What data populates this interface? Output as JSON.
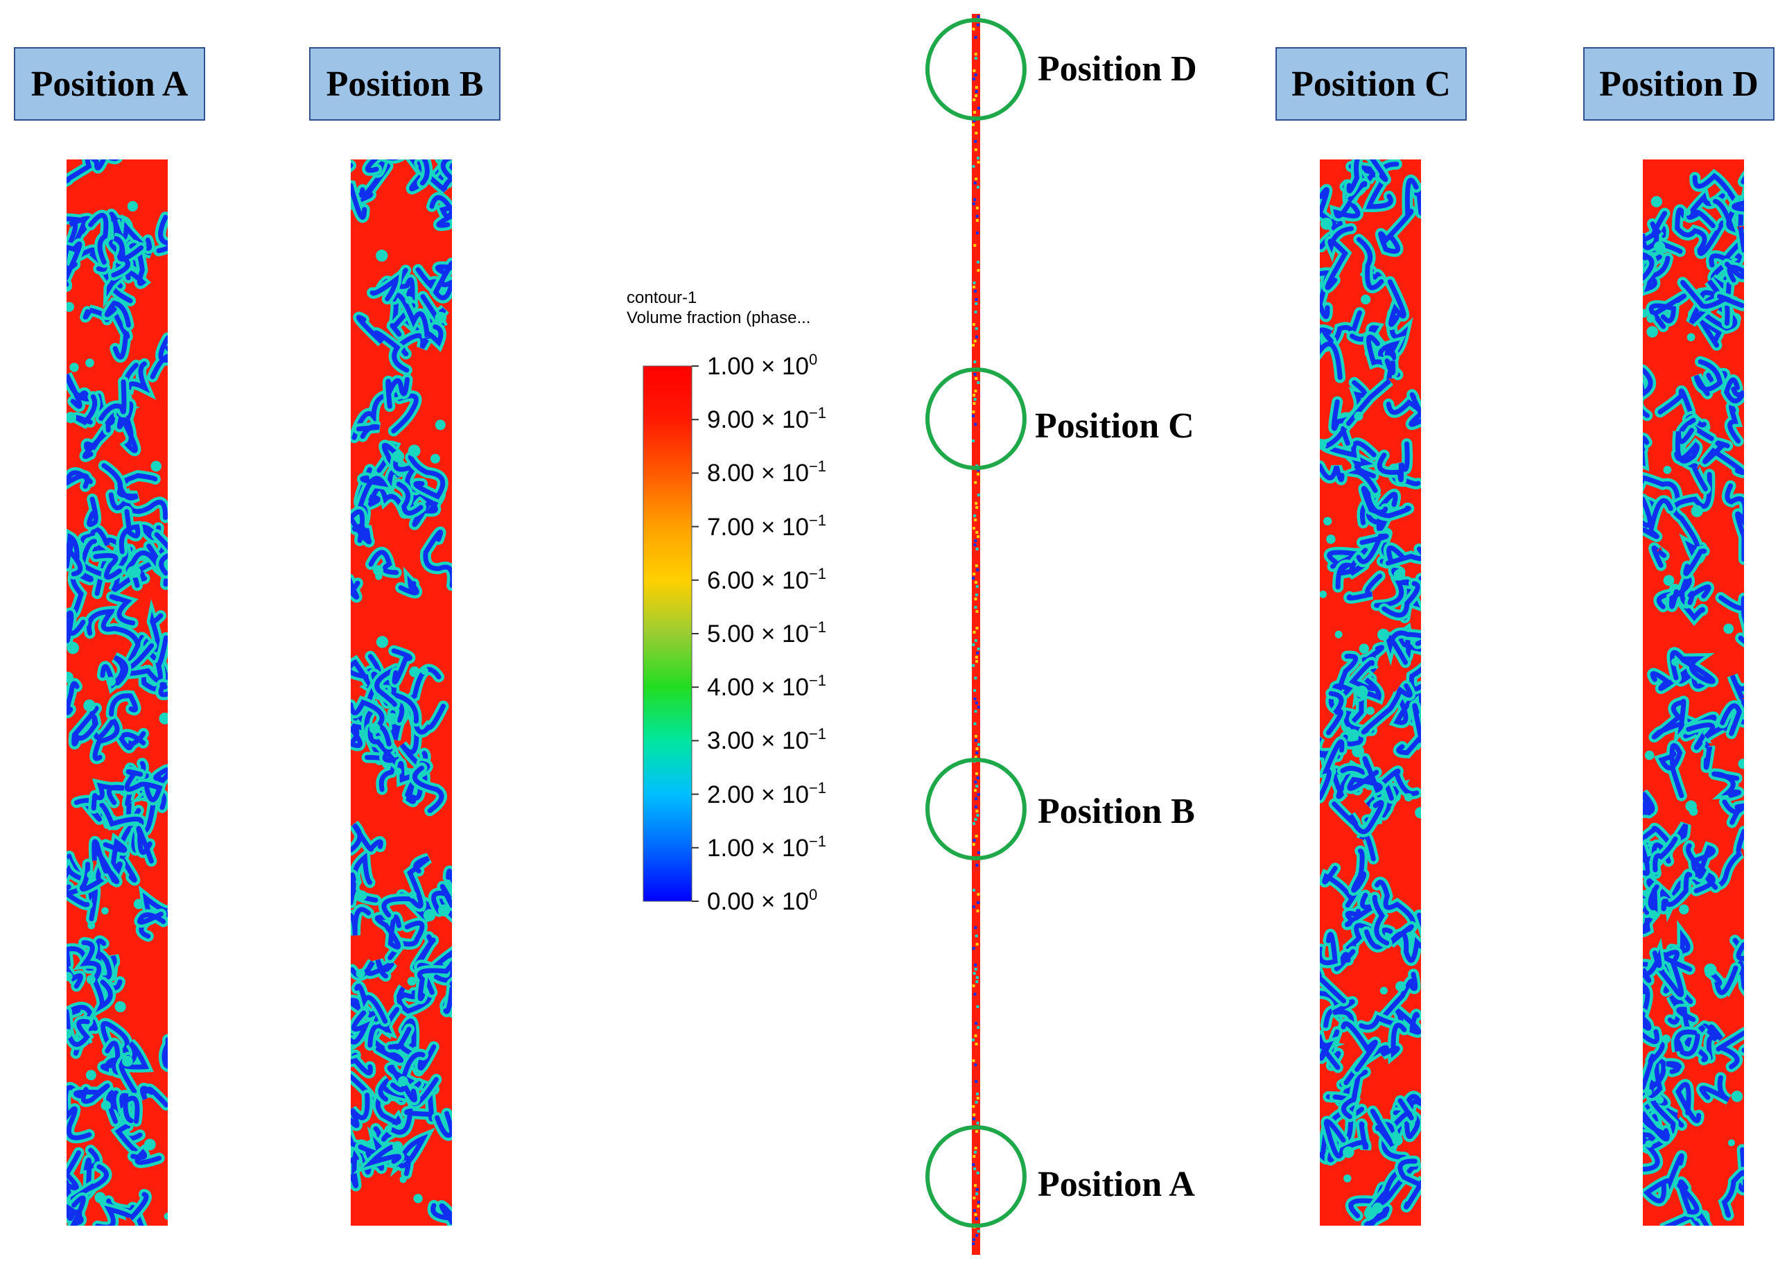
{
  "panels": [
    {
      "label": "Position A"
    },
    {
      "label": "Position B"
    },
    {
      "label": "Position C"
    },
    {
      "label": "Position D"
    }
  ],
  "pipe_markers": [
    {
      "label": "Position D"
    },
    {
      "label": "Position C"
    },
    {
      "label": "Position B"
    },
    {
      "label": "Position A"
    }
  ],
  "legend": {
    "title_line1": "contour-1",
    "title_line2": "Volume fraction (phase...",
    "ticks": [
      {
        "mantissa": "1.00",
        "exp": "0"
      },
      {
        "mantissa": "9.00",
        "exp": "−1"
      },
      {
        "mantissa": "8.00",
        "exp": "−1"
      },
      {
        "mantissa": "7.00",
        "exp": "−1"
      },
      {
        "mantissa": "6.00",
        "exp": "−1"
      },
      {
        "mantissa": "5.00",
        "exp": "−1"
      },
      {
        "mantissa": "4.00",
        "exp": "−1"
      },
      {
        "mantissa": "3.00",
        "exp": "−1"
      },
      {
        "mantissa": "2.00",
        "exp": "−1"
      },
      {
        "mantissa": "1.00",
        "exp": "−1"
      },
      {
        "mantissa": "0.00",
        "exp": "0"
      }
    ],
    "times_sign": "×",
    "colormap": [
      "#0000ff",
      "#0066ff",
      "#00bfff",
      "#00e6a0",
      "#22dd22",
      "#9acd32",
      "#ffd000",
      "#ffa000",
      "#ff5a00",
      "#ff1a00",
      "#ff0000"
    ]
  },
  "colors": {
    "field_high": "#ff1e0a",
    "field_mid": "#18d6c0",
    "field_low": "#1030f0",
    "marker_ring": "#1fa84a",
    "tag_fill": "#9dc3e6",
    "tag_border": "#2f528f"
  }
}
